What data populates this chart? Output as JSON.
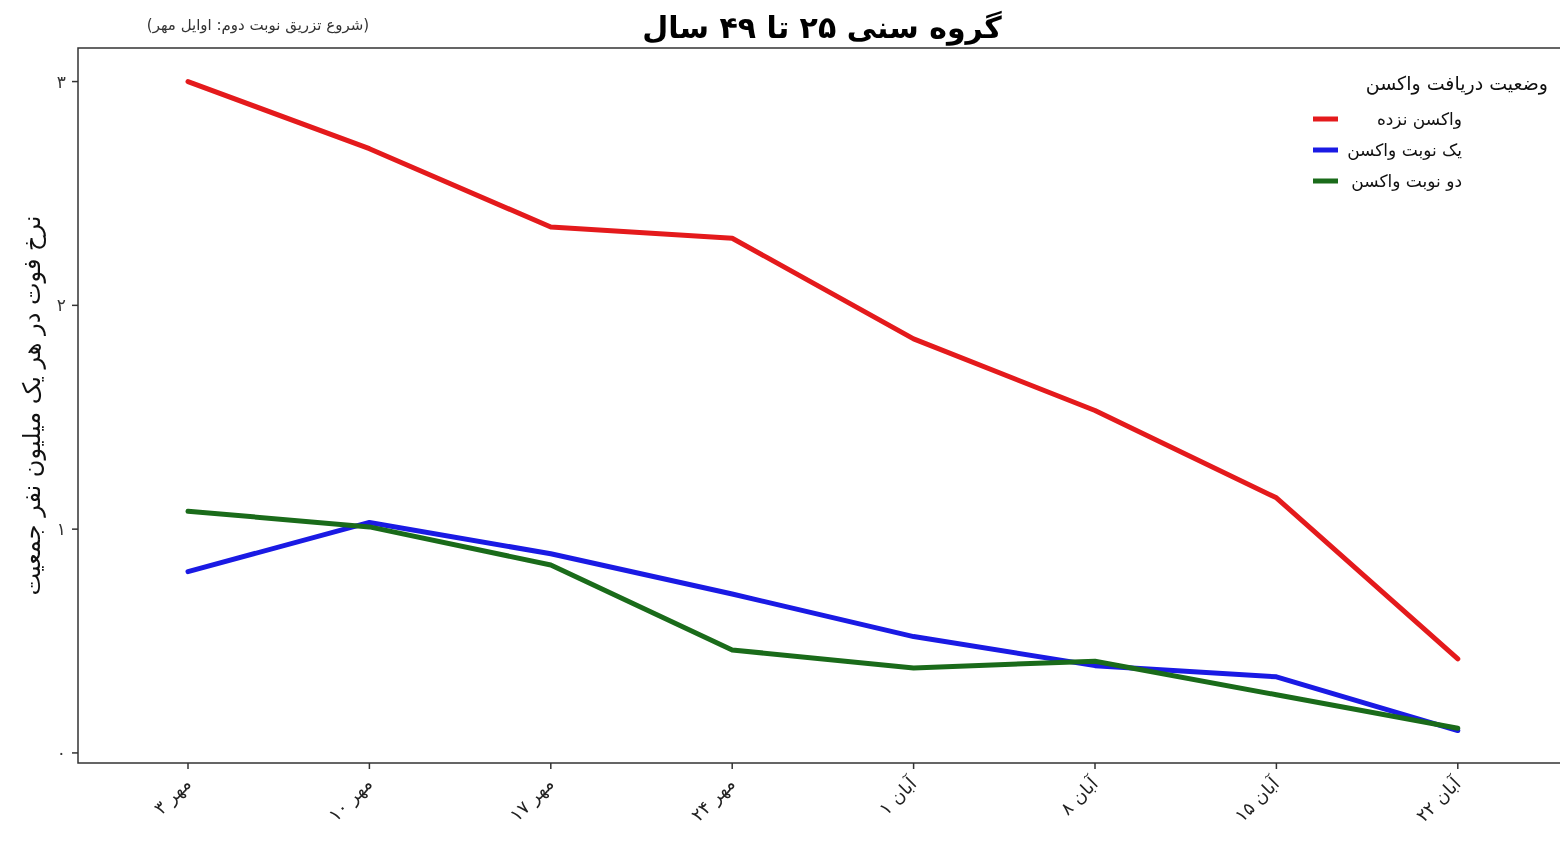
{
  "chart_data": {
    "type": "line",
    "title": "گروه سنی ۲۵ تا ۴۹ سال",
    "annotations": [
      "(شروع تزریق نوبت دوم: اوایل مهر)"
    ],
    "ylabel": "نرخ فوت در هر یک میلیون نفر جمعیت",
    "legend_title": "وضعیت دریافت واکسن",
    "legend": "top right",
    "grid": false,
    "marker": "none",
    "line_style": "solid",
    "categories": [
      "۳ مهر",
      "۱۰ مهر",
      "۱۷ مهر",
      "۲۴ مهر",
      "۱ آبان",
      "۸ آبان",
      "۱۵ آبان",
      "۲۲ آبان"
    ],
    "ylim": [
      -0.045,
      3.15
    ],
    "yticks": [
      {
        "value": 0,
        "label": "۰"
      },
      {
        "value": 1,
        "label": "۱"
      },
      {
        "value": 2,
        "label": "۲"
      },
      {
        "value": 3,
        "label": "۳"
      }
    ],
    "series": [
      {
        "name": "واکسن نزده",
        "color": "#e41a1c",
        "values": [
          3.0,
          2.7,
          2.35,
          2.3,
          1.85,
          1.53,
          1.14,
          0.42
        ]
      },
      {
        "name": "یک نوبت واکسن",
        "color": "#1a1ae4",
        "values": [
          0.81,
          1.03,
          0.89,
          0.71,
          0.52,
          0.39,
          0.34,
          0.1
        ]
      },
      {
        "name": "دو نوبت واکسن",
        "color": "#1a6b1a",
        "values": [
          1.08,
          1.01,
          0.84,
          0.46,
          0.38,
          0.41,
          0.26,
          0.11
        ]
      }
    ]
  }
}
